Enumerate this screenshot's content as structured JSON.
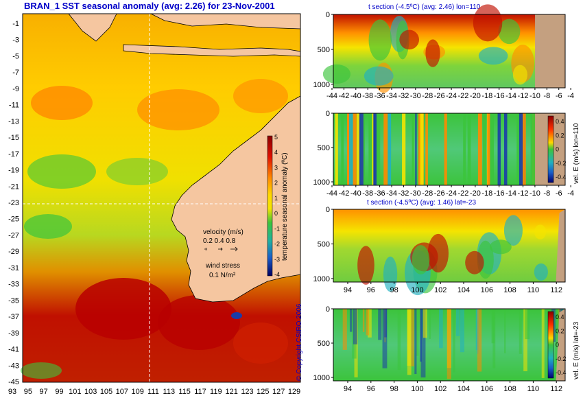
{
  "title": "BRAN_1 SST seasonal anomaly (avg: 2.26) for 23-Nov-2001",
  "copyright": "© Copyright CSIRO 2006",
  "colors": {
    "text": "#0000c8",
    "land": "#f5c6a0",
    "bathy": "#c4a080",
    "hot": "#b00000",
    "warm": "#ff8a00",
    "neutral": "#f5e400",
    "cool": "#3cc43c",
    "cold": "#1a3ca8"
  },
  "map": {
    "lat_ticks": [
      "-1",
      "-3",
      "-5",
      "-7",
      "-9",
      "-11",
      "-13",
      "-15",
      "-17",
      "-19",
      "-21",
      "-23",
      "-25",
      "-27",
      "-29",
      "-31",
      "-33",
      "-35",
      "-37",
      "-39",
      "-41",
      "-43",
      "-45"
    ],
    "lon_ticks": [
      "93",
      "95",
      "97",
      "99",
      "101",
      "103",
      "105",
      "107",
      "109",
      "111",
      "113",
      "115",
      "117",
      "119",
      "121",
      "123",
      "125",
      "127",
      "129"
    ],
    "crosshair": {
      "lon": 110,
      "lat": -23
    },
    "colorbar": {
      "label": "temperature seasonal anomaly (ºC)",
      "ticks": [
        "5",
        "4",
        "3",
        "2",
        "1",
        "0",
        "-1",
        "-2",
        "-3",
        "-4"
      ],
      "range": [
        -4,
        5
      ]
    },
    "legend": {
      "velocity_label": "velocity (m/s)",
      "velocity_values": "0.2 0.4 0.8",
      "wind_label": "wind stress",
      "wind_value": "0.1 N/m²"
    }
  },
  "chart_data": [
    {
      "type": "heatmap",
      "title": "t section (-4.5ºC) (avg: 2.46) lon=110",
      "x_ticks": [
        "-44",
        "-42",
        "-40",
        "-38",
        "-36",
        "-34",
        "-32",
        "-30",
        "-28",
        "-26",
        "-24",
        "-22",
        "-20",
        "-18",
        "-16",
        "-14",
        "-12",
        "-10",
        "-8",
        "-6",
        "-4"
      ],
      "y_ticks": [
        "0",
        "500",
        "1000"
      ],
      "ylim": [
        0,
        1050
      ],
      "colorbar": null
    },
    {
      "type": "heatmap",
      "title": "",
      "x_ticks": [
        "-44",
        "-42",
        "-40",
        "-38",
        "-36",
        "-34",
        "-32",
        "-30",
        "-28",
        "-26",
        "-24",
        "-22",
        "-20",
        "-18",
        "-16",
        "-14",
        "-12",
        "-10",
        "-8",
        "-6",
        "-4"
      ],
      "y_ticks": [
        "0",
        "500",
        "1000"
      ],
      "ylim": [
        0,
        1050
      ],
      "colorbar": {
        "label": "vel. E (m/s) lon=110",
        "ticks": [
          "0.4",
          "0.2",
          "0",
          "-0.2",
          "-0.4"
        ]
      }
    },
    {
      "type": "heatmap",
      "title": "t section (-4.5ºC) (avg: 1.46) lat=-23",
      "x_ticks": [
        "94",
        "96",
        "98",
        "100",
        "102",
        "104",
        "106",
        "108",
        "110",
        "112"
      ],
      "y_ticks": [
        "0",
        "500",
        "1000"
      ],
      "ylim": [
        0,
        1050
      ],
      "colorbar": null
    },
    {
      "type": "heatmap",
      "title": "",
      "x_ticks": [
        "94",
        "96",
        "98",
        "100",
        "102",
        "104",
        "106",
        "108",
        "110",
        "112"
      ],
      "y_ticks": [
        "0",
        "500",
        "1000"
      ],
      "ylim": [
        0,
        1050
      ],
      "colorbar": {
        "label": "vel. E (m/s) lat=-23",
        "ticks": [
          "0.4",
          "0.2",
          "0",
          "-0.2",
          "-0.4"
        ]
      }
    }
  ]
}
